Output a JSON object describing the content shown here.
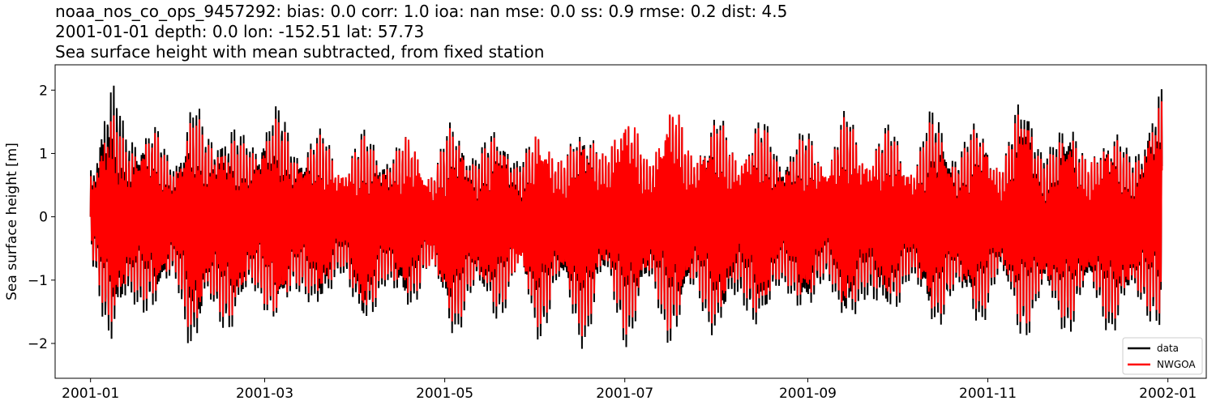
{
  "chart_data": {
    "type": "line",
    "title_lines": [
      "noaa_nos_co_ops_9457292: bias: 0.0  corr: 1.0  ioa: nan  mse: 0.0  ss: 0.9  rmse: 0.2  dist: 4.5",
      "2001-01-01 depth: 0.0 lon: -152.51 lat: 57.73",
      "Sea surface height with mean subtracted, from fixed station"
    ],
    "xlabel": "",
    "ylabel": "Sea surface height [m]",
    "x_range": [
      "2000-12-20",
      "2002-01-14"
    ],
    "ylim": [
      -2.55,
      2.4
    ],
    "x_ticks": [
      {
        "date": "2001-01-01",
        "label": "2001-01"
      },
      {
        "date": "2001-03-01",
        "label": "2001-03"
      },
      {
        "date": "2001-05-01",
        "label": "2001-05"
      },
      {
        "date": "2001-07-01",
        "label": "2001-07"
      },
      {
        "date": "2001-09-01",
        "label": "2001-09"
      },
      {
        "date": "2001-11-01",
        "label": "2001-11"
      },
      {
        "date": "2002-01-01",
        "label": "2002-01"
      }
    ],
    "y_ticks": [
      {
        "value": 2,
        "label": "2"
      },
      {
        "value": 1,
        "label": "1"
      },
      {
        "value": 0,
        "label": "0"
      },
      {
        "value": -1,
        "label": "−1"
      },
      {
        "value": -2,
        "label": "−2"
      }
    ],
    "grid": false,
    "legend_position": "lower-right",
    "series": [
      {
        "name": "data",
        "color": "#000000",
        "envelope": {
          "dates": [
            "2001-01-01",
            "2001-01-08",
            "2001-01-14",
            "2001-01-22",
            "2001-01-29",
            "2001-02-05",
            "2001-02-10",
            "2001-02-17",
            "2001-02-25",
            "2001-03-05",
            "2001-03-12",
            "2001-03-20",
            "2001-03-27",
            "2001-04-04",
            "2001-04-11",
            "2001-04-19",
            "2001-04-26",
            "2001-05-04",
            "2001-05-11",
            "2001-05-19",
            "2001-05-26",
            "2001-06-02",
            "2001-06-09",
            "2001-06-17",
            "2001-06-24",
            "2001-07-02",
            "2001-07-09",
            "2001-07-17",
            "2001-07-24",
            "2001-08-01",
            "2001-08-08",
            "2001-08-16",
            "2001-08-23",
            "2001-08-31",
            "2001-09-07",
            "2001-09-14",
            "2001-09-21",
            "2001-09-29",
            "2001-10-06",
            "2001-10-14",
            "2001-10-21",
            "2001-10-29",
            "2001-11-05",
            "2001-11-13",
            "2001-11-20",
            "2001-11-28",
            "2001-12-05",
            "2001-12-13",
            "2001-12-20",
            "2001-12-30"
          ],
          "high": [
            0.8,
            2.2,
            1.3,
            1.5,
            0.9,
            1.9,
            1.3,
            1.5,
            1.2,
            1.8,
            1.1,
            1.4,
            0.8,
            1.4,
            1.0,
            1.3,
            0.7,
            1.6,
            1.0,
            1.5,
            0.9,
            1.5,
            0.9,
            1.6,
            1.0,
            1.8,
            0.9,
            1.9,
            1.0,
            1.7,
            1.0,
            1.6,
            1.0,
            1.4,
            0.9,
            1.7,
            1.0,
            1.5,
            0.8,
            1.8,
            1.0,
            1.6,
            0.8,
            2.1,
            1.0,
            1.7,
            0.9,
            1.5,
            1.0,
            2.1
          ],
          "low": [
            -0.8,
            -2.1,
            -1.4,
            -1.6,
            -1.0,
            -2.3,
            -1.4,
            -1.9,
            -1.2,
            -1.8,
            -1.2,
            -1.6,
            -0.9,
            -1.9,
            -1.1,
            -1.6,
            -0.8,
            -2.0,
            -1.2,
            -1.7,
            -0.9,
            -2.0,
            -1.1,
            -2.1,
            -1.0,
            -2.1,
            -1.1,
            -2.1,
            -1.2,
            -2.0,
            -1.3,
            -1.9,
            -1.1,
            -1.7,
            -1.0,
            -1.9,
            -1.3,
            -1.7,
            -1.0,
            -1.9,
            -1.2,
            -1.8,
            -1.0,
            -2.0,
            -1.3,
            -1.9,
            -1.2,
            -1.9,
            -1.3,
            -1.9
          ]
        }
      },
      {
        "name": "NWGOA",
        "color": "#ff0000",
        "envelope": {
          "dates": [
            "2001-01-01",
            "2001-01-08",
            "2001-01-14",
            "2001-01-22",
            "2001-01-29",
            "2001-02-05",
            "2001-02-10",
            "2001-02-17",
            "2001-02-25",
            "2001-03-05",
            "2001-03-12",
            "2001-03-20",
            "2001-03-27",
            "2001-04-04",
            "2001-04-11",
            "2001-04-19",
            "2001-04-26",
            "2001-05-04",
            "2001-05-11",
            "2001-05-19",
            "2001-05-26",
            "2001-06-02",
            "2001-06-09",
            "2001-06-17",
            "2001-06-24",
            "2001-07-02",
            "2001-07-09",
            "2001-07-17",
            "2001-07-24",
            "2001-08-01",
            "2001-08-08",
            "2001-08-16",
            "2001-08-23",
            "2001-08-31",
            "2001-09-07",
            "2001-09-14",
            "2001-09-21",
            "2001-09-29",
            "2001-10-06",
            "2001-10-14",
            "2001-10-21",
            "2001-10-29",
            "2001-11-05",
            "2001-11-13",
            "2001-11-20",
            "2001-11-28",
            "2001-12-05",
            "2001-12-13",
            "2001-12-20",
            "2001-12-30"
          ],
          "high": [
            0.7,
            1.7,
            1.1,
            1.4,
            0.8,
            1.7,
            1.2,
            1.3,
            1.1,
            1.6,
            1.0,
            1.3,
            0.8,
            1.3,
            0.9,
            1.3,
            0.7,
            1.5,
            0.9,
            1.4,
            0.8,
            1.5,
            0.9,
            1.5,
            1.0,
            1.8,
            0.9,
            1.9,
            1.0,
            1.6,
            1.0,
            1.5,
            0.9,
            1.3,
            0.9,
            1.6,
            1.0,
            1.4,
            0.8,
            1.6,
            0.9,
            1.5,
            0.8,
            1.9,
            0.9,
            1.5,
            0.9,
            1.4,
            0.9,
            1.9
          ],
          "low": [
            -0.7,
            -1.8,
            -1.2,
            -1.4,
            -0.9,
            -2.0,
            -1.3,
            -1.7,
            -1.1,
            -1.7,
            -1.1,
            -1.4,
            -0.8,
            -1.7,
            -1.0,
            -1.4,
            -0.8,
            -1.8,
            -1.1,
            -1.5,
            -0.9,
            -1.8,
            -1.0,
            -1.9,
            -0.9,
            -1.9,
            -1.0,
            -1.9,
            -1.1,
            -1.8,
            -1.1,
            -1.7,
            -1.0,
            -1.5,
            -0.9,
            -1.7,
            -1.1,
            -1.5,
            -0.9,
            -1.7,
            -1.1,
            -1.6,
            -0.9,
            -1.8,
            -1.2,
            -1.7,
            -1.1,
            -1.7,
            -1.2,
            -1.7
          ]
        }
      }
    ]
  }
}
